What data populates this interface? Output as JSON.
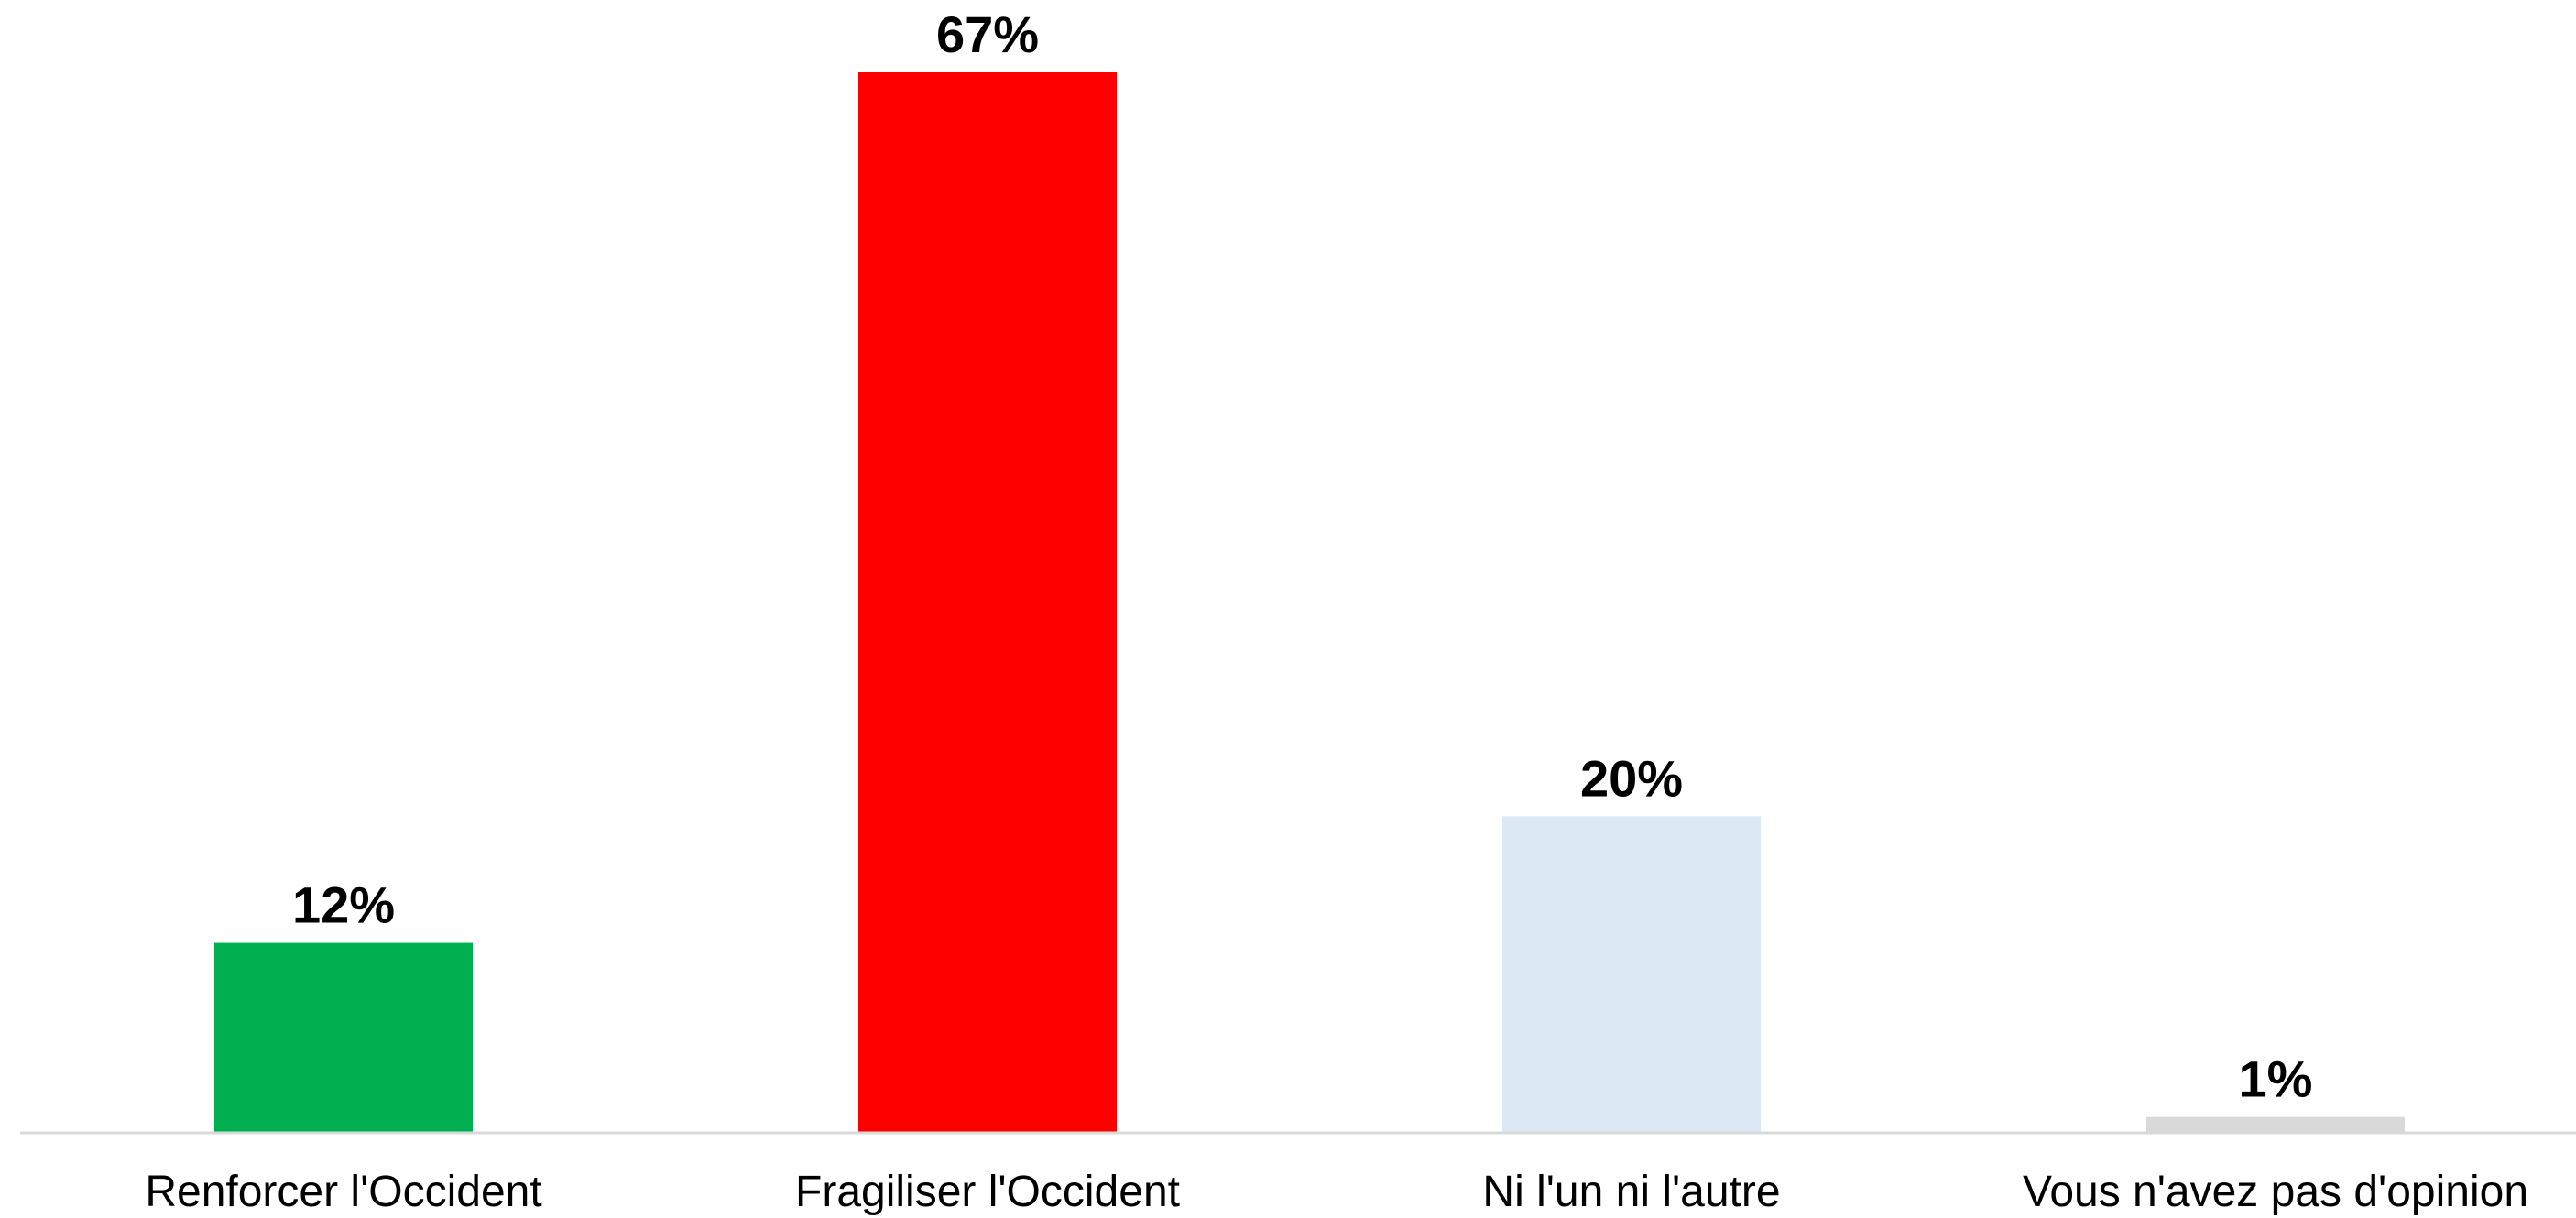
{
  "chart_data": {
    "type": "bar",
    "title": "",
    "xlabel": "",
    "ylabel": "",
    "categories": [
      "Renforcer l'Occident",
      "Fragiliser l'Occident",
      "Ni l'un ni l'autre",
      "Vous n'avez pas d'opinion"
    ],
    "values": [
      12,
      67,
      20,
      1
    ],
    "value_labels": [
      "12%",
      "67%",
      "20%",
      "1%"
    ],
    "unit": "%",
    "ylim": [
      0,
      67
    ],
    "grid": false,
    "legend": "none",
    "colors": [
      "#00B050",
      "#FF0000",
      "#DCE9F5",
      "#D9D9D9"
    ],
    "axis_color": "#D9D9D9"
  }
}
